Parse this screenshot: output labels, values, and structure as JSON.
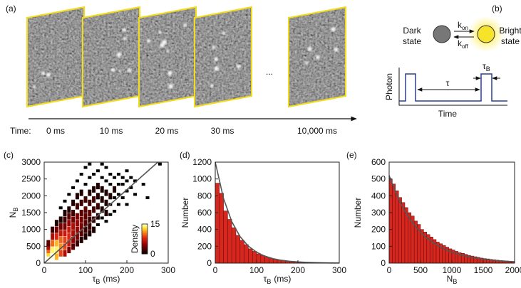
{
  "frames": {
    "panel_label": "(a)",
    "time_label": "Time:",
    "times": [
      "0 ms",
      "10 ms",
      "20 ms",
      "30 ms",
      "10,000 ms"
    ],
    "ellipsis": "..."
  },
  "scheme": {
    "panel_label": "(b)",
    "dark": "Dark state",
    "bright": "Bright state",
    "rate_on": {
      "symbol": "k",
      "subscript": "on"
    },
    "rate_off": {
      "symbol": "k",
      "subscript": "off"
    },
    "ylabel": "Photon",
    "xlabel": "Time",
    "interval": "τ",
    "duration": {
      "symbol": "τ",
      "subscript": "B"
    }
  },
  "chart_data": [
    {
      "type": "scatter",
      "panel_label": "(c)",
      "xlabel": {
        "symbol": "τ",
        "subscript": "B",
        "unit": "(ms)"
      },
      "ylabel": {
        "symbol": "N",
        "subscript": "B"
      },
      "xlim": [
        0,
        300
      ],
      "xticks": [
        0,
        100,
        200,
        300
      ],
      "ylim": [
        0,
        3000
      ],
      "yticks": [
        0,
        500,
        1000,
        1500,
        2000,
        2500,
        3000
      ],
      "x": [
        10,
        10,
        10,
        10,
        10,
        10,
        20,
        20,
        20,
        20,
        20,
        30,
        30,
        30,
        30,
        30,
        30,
        40,
        40,
        40,
        40,
        40,
        40,
        40,
        50,
        50,
        50,
        50,
        50,
        50,
        50,
        50,
        60,
        60,
        60,
        60,
        60,
        60,
        60,
        60,
        70,
        70,
        70,
        70,
        70,
        70,
        70,
        70,
        80,
        80,
        80,
        80,
        80,
        80,
        80,
        80,
        90,
        90,
        90,
        90,
        90,
        90,
        90,
        90,
        100,
        100,
        100,
        100,
        100,
        100,
        100,
        100,
        110,
        110,
        110,
        110,
        110,
        110,
        110,
        110,
        120,
        120,
        120,
        120,
        120,
        120,
        130,
        130,
        130,
        130,
        130,
        130,
        140,
        140,
        140,
        140,
        140,
        140,
        150,
        150,
        150,
        150,
        150,
        150,
        160,
        160,
        160,
        160,
        160,
        170,
        170,
        170,
        170,
        180,
        180,
        180,
        180,
        190,
        190,
        190,
        200,
        200,
        200,
        200,
        210,
        210,
        220,
        220,
        240,
        250,
        280
      ],
      "values": [
        100,
        200,
        300,
        400,
        500,
        600,
        200,
        400,
        600,
        800,
        1000,
        200,
        400,
        600,
        800,
        1000,
        1200,
        300,
        500,
        700,
        900,
        1100,
        1300,
        1600,
        300,
        500,
        700,
        900,
        1100,
        1300,
        1500,
        1800,
        400,
        600,
        800,
        1000,
        1200,
        1400,
        1600,
        2000,
        500,
        700,
        900,
        1100,
        1300,
        1500,
        1800,
        2200,
        600,
        800,
        1000,
        1200,
        1400,
        1700,
        2000,
        2400,
        700,
        900,
        1100,
        1300,
        1500,
        1800,
        2100,
        2600,
        800,
        1000,
        1200,
        1400,
        1600,
        1900,
        2300,
        2800,
        900,
        1100,
        1300,
        1500,
        1800,
        2100,
        2500,
        2900,
        1000,
        1300,
        1600,
        1900,
        2200,
        2600,
        1100,
        1400,
        1700,
        2000,
        2300,
        2700,
        1300,
        1600,
        1900,
        2200,
        2500,
        2900,
        1200,
        1500,
        1800,
        2100,
        2400,
        2800,
        1400,
        1700,
        2000,
        2300,
        2600,
        1500,
        1900,
        2200,
        2500,
        1700,
        2000,
        2300,
        2600,
        1900,
        2300,
        2500,
        1700,
        2100,
        2400,
        2700,
        2200,
        2500,
        2000,
        2400,
        2300,
        1900,
        2900
      ],
      "density": [
        15,
        15,
        13,
        10,
        6,
        3,
        15,
        14,
        10,
        6,
        2,
        12,
        14,
        12,
        8,
        4,
        1,
        9,
        11,
        10,
        7,
        4,
        1,
        0,
        6,
        9,
        9,
        7,
        4,
        2,
        1,
        0,
        4,
        7,
        8,
        7,
        5,
        3,
        1,
        0,
        3,
        5,
        6,
        6,
        4,
        2,
        1,
        0,
        2,
        4,
        5,
        5,
        4,
        2,
        1,
        0,
        1,
        3,
        4,
        4,
        3,
        2,
        1,
        0,
        1,
        2,
        3,
        3,
        3,
        2,
        0,
        0,
        1,
        2,
        2,
        3,
        2,
        1,
        0,
        0,
        1,
        2,
        2,
        2,
        1,
        0,
        0,
        1,
        2,
        1,
        1,
        0,
        0,
        1,
        1,
        1,
        0,
        0,
        0,
        1,
        1,
        1,
        0,
        0,
        0,
        0,
        1,
        0,
        0,
        0,
        0,
        1,
        0,
        0,
        0,
        0,
        0,
        0,
        0,
        0,
        0,
        0,
        0,
        0,
        0,
        0,
        0,
        0,
        0,
        0,
        0
      ],
      "colorbar": {
        "label": "Density",
        "lim": [
          0,
          15
        ],
        "ticks": [
          0,
          15
        ]
      },
      "fit": {
        "x": [
          0,
          275
        ],
        "y": [
          0,
          3000
        ],
        "color": "#555555"
      }
    },
    {
      "type": "histogram",
      "panel_label": "(d)",
      "color": "#d7261e",
      "xlabel": {
        "symbol": "τ",
        "subscript": "B",
        "unit": "(ms)"
      },
      "ylabel": "Number",
      "xlim": [
        0,
        300
      ],
      "xticks": [
        0,
        100,
        200,
        300
      ],
      "ylim": [
        0,
        1200
      ],
      "yticks": [
        0,
        200,
        400,
        600,
        800,
        1000,
        1200
      ],
      "bins": [
        0,
        10,
        20,
        30,
        40,
        50,
        60,
        70,
        80,
        90,
        100,
        110,
        120,
        130,
        140,
        150,
        160,
        170,
        180,
        190,
        200,
        210,
        220,
        230,
        240,
        250,
        260,
        270,
        280,
        290,
        300
      ],
      "values": [
        950,
        830,
        620,
        520,
        420,
        330,
        270,
        220,
        170,
        140,
        110,
        90,
        70,
        55,
        45,
        35,
        28,
        22,
        18,
        14,
        11,
        9,
        7,
        5,
        4,
        3,
        2,
        2,
        1,
        1
      ],
      "fit": {
        "x": [
          0,
          20,
          40,
          60,
          80,
          100,
          120,
          140,
          160,
          180,
          200,
          220,
          240,
          260,
          280,
          300
        ],
        "y": [
          1200,
          769,
          493,
          316,
          203,
          130,
          83,
          53,
          34,
          22,
          14,
          9,
          6,
          4,
          2,
          1
        ],
        "color": "#555555"
      }
    },
    {
      "type": "histogram",
      "panel_label": "(e)",
      "color": "#d7261e",
      "xlabel": {
        "symbol": "N",
        "subscript": "B"
      },
      "ylabel": "Number",
      "xlim": [
        0,
        2000
      ],
      "xticks": [
        0,
        500,
        1000,
        1500,
        2000
      ],
      "ylim": [
        0,
        600
      ],
      "yticks": [
        0,
        100,
        200,
        300,
        400,
        500,
        600
      ],
      "bins": [
        0,
        50,
        100,
        150,
        200,
        250,
        300,
        350,
        400,
        450,
        500,
        550,
        600,
        650,
        700,
        750,
        800,
        850,
        900,
        950,
        1000,
        1050,
        1100,
        1150,
        1200,
        1250,
        1300,
        1350,
        1400,
        1450,
        1500,
        1550,
        1600,
        1650,
        1700,
        1750,
        1800,
        1850,
        1900,
        1950,
        2000
      ],
      "values": [
        500,
        470,
        430,
        390,
        360,
        330,
        300,
        280,
        250,
        230,
        200,
        185,
        170,
        155,
        140,
        125,
        115,
        105,
        95,
        85,
        78,
        70,
        62,
        58,
        52,
        46,
        42,
        38,
        34,
        30,
        27,
        25,
        22,
        20,
        18,
        16,
        14,
        13,
        12,
        10
      ],
      "fit": {
        "x": [
          0,
          100,
          200,
          300,
          400,
          500,
          600,
          700,
          800,
          900,
          1000,
          1100,
          1200,
          1300,
          1400,
          1500,
          1600,
          1700,
          1800,
          1900,
          2000
        ],
        "y": [
          520,
          423,
          343,
          279,
          227,
          184,
          150,
          122,
          99,
          80,
          65,
          53,
          43,
          35,
          29,
          23,
          19,
          15,
          13,
          10,
          8
        ],
        "color": "#555555"
      }
    }
  ]
}
